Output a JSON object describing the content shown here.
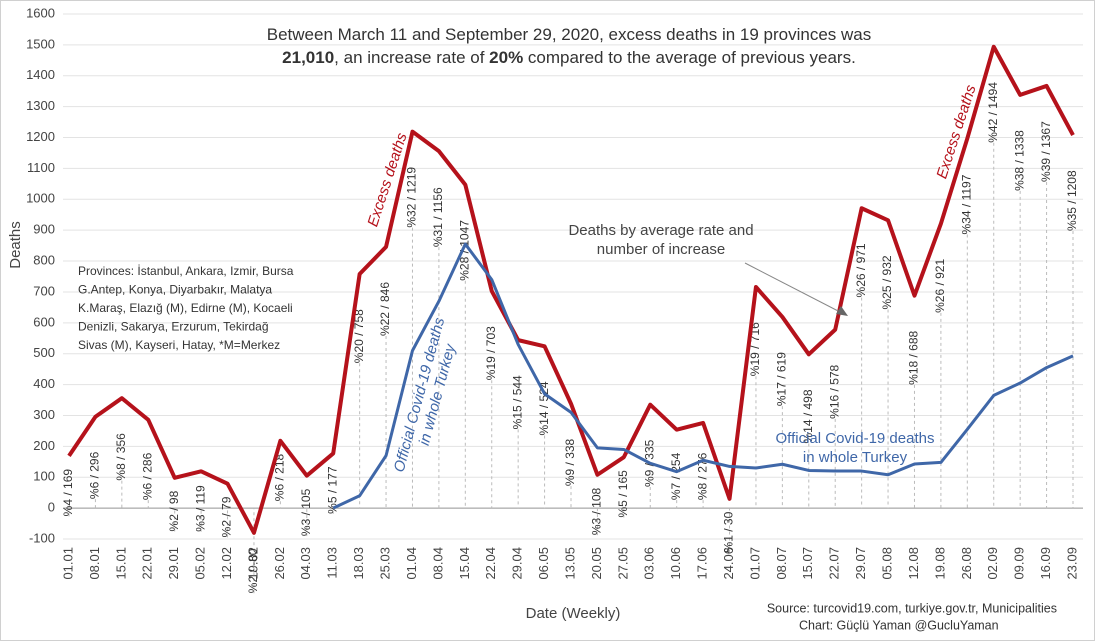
{
  "chart_data": {
    "type": "line",
    "title_lines": [
      [
        {
          "text": "Between March 11 and September 29, 2020, excess deaths in 19 provinces was",
          "bold": false
        }
      ],
      [
        {
          "text": "21,010",
          "bold": true
        },
        {
          "text": ", an increase rate of ",
          "bold": false
        },
        {
          "text": "20%",
          "bold": true
        },
        {
          "text": " compared to the average of previous years.",
          "bold": false
        }
      ]
    ],
    "xlabel": "Date (Weekly)",
    "ylabel": "Deaths",
    "categories": [
      "01.01",
      "08.01",
      "15.01",
      "22.01",
      "29.01",
      "05.02",
      "12.02",
      "19.02",
      "26.02",
      "04.03",
      "11.03",
      "18.03",
      "25.03",
      "01.04",
      "08.04",
      "15.04",
      "22.04",
      "29.04",
      "06.05",
      "13.05",
      "20.05",
      "27.05",
      "03.06",
      "10.06",
      "17.06",
      "24.06",
      "01.07",
      "08.07",
      "15.07",
      "22.07",
      "29.07",
      "05.08",
      "12.08",
      "19.08",
      "26.08",
      "02.09",
      "09.09",
      "16.09",
      "23.09"
    ],
    "ylim": [
      -100,
      1600
    ],
    "yticks": [
      -100,
      0,
      100,
      200,
      300,
      400,
      500,
      600,
      700,
      800,
      900,
      1000,
      1100,
      1200,
      1300,
      1400,
      1500,
      1600
    ],
    "grid": true,
    "series": [
      {
        "name": "Excess deaths",
        "color": "#b5121b",
        "values": [
          169,
          296,
          356,
          286,
          98,
          119,
          79,
          -80,
          218,
          105,
          177,
          758,
          846,
          1219,
          1156,
          1047,
          703,
          544,
          524,
          338,
          108,
          165,
          335,
          254,
          276,
          30,
          716,
          619,
          498,
          578,
          971,
          932,
          688,
          921,
          1197,
          1494,
          1338,
          1367,
          1208
        ],
        "value_labels": [
          "%4 / 169",
          "%6 / 296",
          "%8 / 356",
          "%6 / 286",
          "%2 / 98",
          "%3 / 119",
          "%2 / 79",
          "%2 / -80",
          "%6 / 218",
          "%3 / 105",
          "%5 / 177",
          "%20 / 758",
          "%22 / 846",
          "%32 / 1219",
          "%31 / 1156",
          "%28 / 1047",
          "%19 / 703",
          "%15 / 544",
          "%14 / 524",
          "%9 / 338",
          "%3 / 108",
          "%5 / 165",
          "%9 / 335",
          "%7 / 254",
          "%8 / 276",
          "%1 / 30",
          "%19 / 716",
          "%17 / 619",
          "%14 / 498",
          "%16 / 578",
          "%26 / 971",
          "%25 / 932",
          "%18 / 688",
          "%26 / 921",
          "%34 / 1197",
          "%42 / 1494",
          "%38 / 1338",
          "%39 / 1367",
          "%35 / 1208"
        ]
      },
      {
        "name_lines": [
          "Official Covid-19 deaths",
          "in whole Turkey"
        ],
        "color": "#3f67a8",
        "values": [
          null,
          null,
          null,
          null,
          null,
          null,
          null,
          null,
          null,
          null,
          0,
          40,
          170,
          510,
          670,
          855,
          740,
          530,
          370,
          310,
          195,
          190,
          145,
          118,
          155,
          135,
          130,
          142,
          122,
          120,
          120,
          108,
          143,
          148,
          255,
          365,
          405,
          455,
          493
        ]
      }
    ],
    "arrow_note": [
      "Deaths by average rate and",
      "number of increase"
    ],
    "provinces": [
      "Provinces: İstanbul, Ankara, Izmir, Bursa",
      "G.Antep, Konya, Diyarbakır, Malatya",
      "K.Maraş, Elazığ (M), Edirne (M), Kocaeli",
      "Denizli, Sakarya, Erzurum, Tekirdağ",
      "Sivas (M), Kayseri, Hatay, *M=Merkez"
    ],
    "source": "Source:  turcovid19.com,  turkiye.gov.tr,  Municipalities",
    "credit": "Chart:  Güçlü Yaman @GucluYaman"
  }
}
